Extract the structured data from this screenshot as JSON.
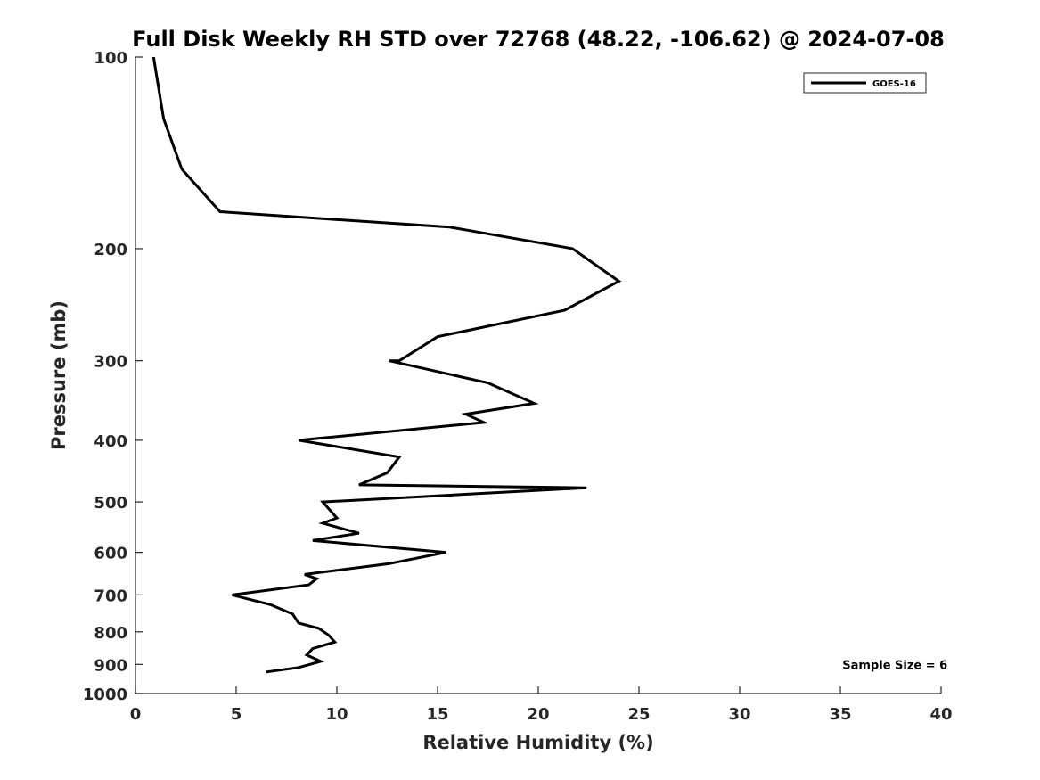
{
  "chart_data": {
    "type": "line",
    "title": "Full Disk Weekly RH STD over 72768 (48.22, -106.62) @ 2024-07-08",
    "xlabel": "Relative Humidity (%)",
    "ylabel": "Pressure (mb)",
    "xlim": [
      0,
      40
    ],
    "ylim": [
      100,
      1000
    ],
    "yscale": "log",
    "yreversed": true,
    "grid": false,
    "legend_position": "top-right",
    "x_ticks": [
      "0",
      "5",
      "10",
      "15",
      "20",
      "25",
      "30",
      "35",
      "40"
    ],
    "y_ticks": [
      "100",
      "200",
      "300",
      "400",
      "500",
      "600",
      "700",
      "800",
      "900",
      "1000"
    ],
    "series": [
      {
        "name": "GOES-16",
        "color": "#000000",
        "points": [
          [
            0.9,
            100
          ],
          [
            1.4,
            125
          ],
          [
            2.3,
            150
          ],
          [
            4.2,
            175
          ],
          [
            15.6,
            185
          ],
          [
            21.7,
            200
          ],
          [
            24.0,
            225
          ],
          [
            21.3,
            250
          ],
          [
            15.0,
            275
          ],
          [
            13.1,
            300
          ],
          [
            12.6,
            300
          ],
          [
            17.5,
            325
          ],
          [
            19.8,
            350
          ],
          [
            16.4,
            364
          ],
          [
            17.3,
            375
          ],
          [
            8.1,
            400
          ],
          [
            13.1,
            425
          ],
          [
            12.5,
            450
          ],
          [
            11.1,
            470
          ],
          [
            22.4,
            475
          ],
          [
            9.3,
            500
          ],
          [
            10.0,
            530
          ],
          [
            9.3,
            540
          ],
          [
            11.1,
            560
          ],
          [
            8.8,
            575
          ],
          [
            15.4,
            600
          ],
          [
            12.6,
            625
          ],
          [
            8.4,
            650
          ],
          [
            9.0,
            660
          ],
          [
            8.6,
            675
          ],
          [
            4.8,
            700
          ],
          [
            6.7,
            725
          ],
          [
            7.8,
            750
          ],
          [
            8.1,
            775
          ],
          [
            9.1,
            790
          ],
          [
            9.6,
            810
          ],
          [
            9.9,
            830
          ],
          [
            8.8,
            850
          ],
          [
            8.5,
            870
          ],
          [
            9.2,
            890
          ],
          [
            8.1,
            910
          ],
          [
            6.5,
            925
          ]
        ]
      }
    ],
    "annotations": [
      {
        "text": "Sample Size = 6",
        "x": 35.1,
        "y": 900
      }
    ]
  }
}
